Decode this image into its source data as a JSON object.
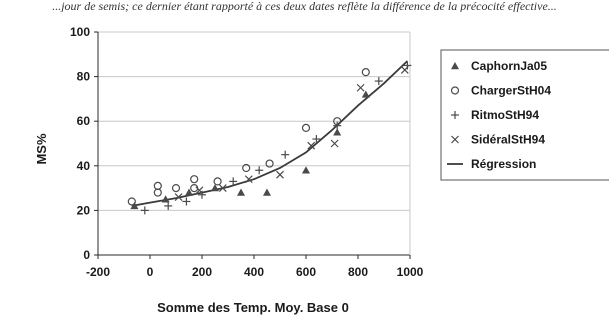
{
  "header_text": "...jour de semis; ce dernier étant rapporté à ces deux dates reflète la différence de la précocité effective...",
  "chart_data": {
    "type": "scatter",
    "xlabel": "Somme des Temp. Moy. Base 0",
    "ylabel": "MS%",
    "xlim": [
      -200,
      1000
    ],
    "ylim": [
      0,
      100
    ],
    "xticks": [
      -200,
      0,
      200,
      400,
      600,
      800,
      1000
    ],
    "yticks": [
      0,
      20,
      40,
      60,
      80,
      100
    ],
    "grid": "horizontal",
    "legend_position": "right",
    "series": [
      {
        "name": "CaphornJa05",
        "marker": "triangle",
        "points": [
          [
            -60,
            22
          ],
          [
            60,
            25
          ],
          [
            150,
            28
          ],
          [
            250,
            30
          ],
          [
            350,
            28
          ],
          [
            450,
            28
          ],
          [
            600,
            38
          ],
          [
            720,
            55
          ],
          [
            830,
            72
          ]
        ]
      },
      {
        "name": "ChargerStH04",
        "marker": "circle",
        "points": [
          [
            -70,
            24
          ],
          [
            30,
            31
          ],
          [
            30,
            28
          ],
          [
            100,
            30
          ],
          [
            170,
            34
          ],
          [
            170,
            30
          ],
          [
            260,
            33
          ],
          [
            370,
            39
          ],
          [
            460,
            41
          ],
          [
            600,
            57
          ],
          [
            720,
            60
          ],
          [
            830,
            82
          ]
        ]
      },
      {
        "name": "RitmoStH94",
        "marker": "plus",
        "points": [
          [
            -20,
            20
          ],
          [
            70,
            22
          ],
          [
            140,
            24
          ],
          [
            200,
            27
          ],
          [
            320,
            33
          ],
          [
            420,
            38
          ],
          [
            520,
            45
          ],
          [
            640,
            52
          ],
          [
            720,
            58
          ],
          [
            880,
            78
          ],
          [
            990,
            85
          ]
        ]
      },
      {
        "name": "SidéralStH94",
        "marker": "x",
        "points": [
          [
            110,
            26
          ],
          [
            190,
            29
          ],
          [
            280,
            30
          ],
          [
            380,
            34
          ],
          [
            500,
            36
          ],
          [
            620,
            49
          ],
          [
            710,
            50
          ],
          [
            810,
            75
          ],
          [
            980,
            83
          ]
        ]
      }
    ],
    "regression": {
      "name": "Régression",
      "points": [
        [
          -70,
          22
        ],
        [
          0,
          23.5
        ],
        [
          100,
          25.5
        ],
        [
          200,
          28
        ],
        [
          300,
          30.5
        ],
        [
          400,
          34
        ],
        [
          500,
          39
        ],
        [
          600,
          46
        ],
        [
          700,
          56
        ],
        [
          800,
          67
        ],
        [
          900,
          77
        ],
        [
          990,
          87
        ]
      ]
    },
    "legend_labels": [
      "CaphornJa05",
      "ChargerStH04",
      "RitmoStH94",
      "SidéralStH94",
      "Régression"
    ]
  },
  "colors": {
    "markers": "#4a4a4a",
    "regression": "#3a3a3a",
    "grid": "#c8c8c8",
    "axis": "#2a2a2a",
    "legend_border": "#555555"
  }
}
